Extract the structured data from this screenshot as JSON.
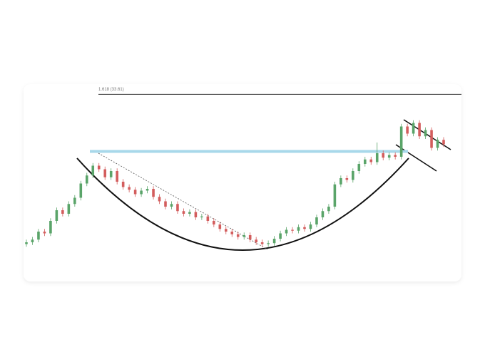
{
  "chart_data": {
    "type": "candlestick",
    "fib_label": "1.618 (33.61)",
    "fib_level": 33.61,
    "resistance_level": 27.2,
    "ylim": [
      15,
      35
    ],
    "colors": {
      "up": "#5aa469",
      "down": "#d35d5d",
      "resistance": "#a8d8ea"
    },
    "open": [
      16.8,
      17.0,
      17.3,
      18.2,
      18.0,
      19.4,
      20.6,
      20.2,
      21.3,
      22.0,
      23.6,
      24.5,
      25.6,
      25.2,
      24.3,
      25.0,
      23.8,
      23.2,
      22.9,
      22.4,
      22.8,
      23.0,
      22.1,
      21.6,
      21.0,
      21.3,
      20.5,
      20.2,
      20.4,
      19.8,
      19.9,
      19.4,
      19.0,
      18.5,
      18.2,
      17.9,
      17.6,
      17.8,
      17.3,
      17.0,
      16.8,
      16.9,
      17.4,
      18.0,
      18.4,
      18.3,
      18.7,
      18.5,
      19.0,
      19.8,
      20.5,
      21.0,
      23.5,
      24.2,
      24.0,
      25.0,
      25.8,
      26.3,
      26.0,
      27.0,
      26.5,
      26.8,
      26.6,
      30.0,
      29.2,
      30.4,
      28.9,
      29.6,
      27.6,
      28.5
    ],
    "high": [
      17.3,
      17.6,
      18.5,
      18.5,
      19.7,
      20.9,
      20.9,
      21.6,
      22.3,
      23.9,
      24.8,
      25.9,
      25.9,
      25.5,
      25.3,
      25.3,
      24.1,
      23.5,
      23.2,
      23.1,
      23.3,
      23.3,
      22.4,
      21.9,
      21.6,
      21.6,
      20.8,
      20.7,
      20.7,
      20.2,
      20.2,
      19.7,
      19.3,
      18.8,
      18.5,
      18.2,
      18.1,
      18.1,
      17.6,
      17.3,
      17.2,
      17.7,
      18.3,
      18.7,
      18.7,
      19.0,
      19.0,
      19.3,
      20.1,
      20.8,
      21.3,
      23.8,
      24.5,
      24.5,
      25.3,
      26.1,
      26.6,
      26.6,
      28.2,
      27.3,
      27.1,
      27.1,
      30.3,
      30.3,
      30.7,
      30.7,
      29.9,
      29.9,
      28.8,
      28.8
    ],
    "low": [
      16.5,
      16.7,
      17.0,
      17.7,
      17.7,
      19.1,
      19.9,
      19.9,
      21.0,
      21.7,
      23.3,
      24.2,
      24.9,
      24.0,
      24.0,
      23.5,
      22.9,
      22.6,
      22.1,
      22.1,
      22.5,
      21.8,
      21.3,
      20.7,
      20.7,
      20.2,
      19.9,
      19.9,
      19.5,
      19.5,
      19.1,
      18.7,
      18.2,
      17.9,
      17.6,
      17.3,
      17.3,
      17.0,
      16.7,
      16.5,
      16.5,
      16.6,
      17.1,
      17.7,
      18.0,
      18.0,
      18.2,
      18.2,
      18.7,
      19.5,
      20.2,
      20.7,
      23.2,
      23.7,
      23.7,
      24.7,
      25.5,
      25.7,
      25.7,
      26.2,
      26.2,
      26.3,
      26.3,
      28.9,
      28.9,
      28.6,
      28.6,
      27.3,
      27.3,
      27.7
    ],
    "close": [
      17.0,
      17.3,
      18.2,
      18.0,
      19.4,
      20.6,
      20.2,
      21.3,
      22.0,
      23.6,
      24.5,
      25.6,
      25.2,
      24.3,
      25.0,
      23.8,
      23.2,
      22.9,
      22.4,
      22.8,
      23.0,
      22.1,
      21.6,
      21.0,
      21.3,
      20.5,
      20.2,
      20.4,
      19.8,
      19.9,
      19.4,
      19.0,
      18.5,
      18.2,
      17.9,
      17.6,
      17.8,
      17.3,
      17.0,
      16.8,
      16.9,
      17.4,
      18.0,
      18.4,
      18.3,
      18.7,
      18.5,
      19.0,
      19.8,
      20.5,
      21.0,
      23.5,
      24.2,
      24.0,
      25.0,
      25.8,
      26.3,
      26.0,
      27.0,
      26.5,
      26.8,
      26.6,
      30.0,
      29.2,
      30.4,
      28.9,
      29.6,
      27.6,
      28.5,
      28.0
    ]
  }
}
